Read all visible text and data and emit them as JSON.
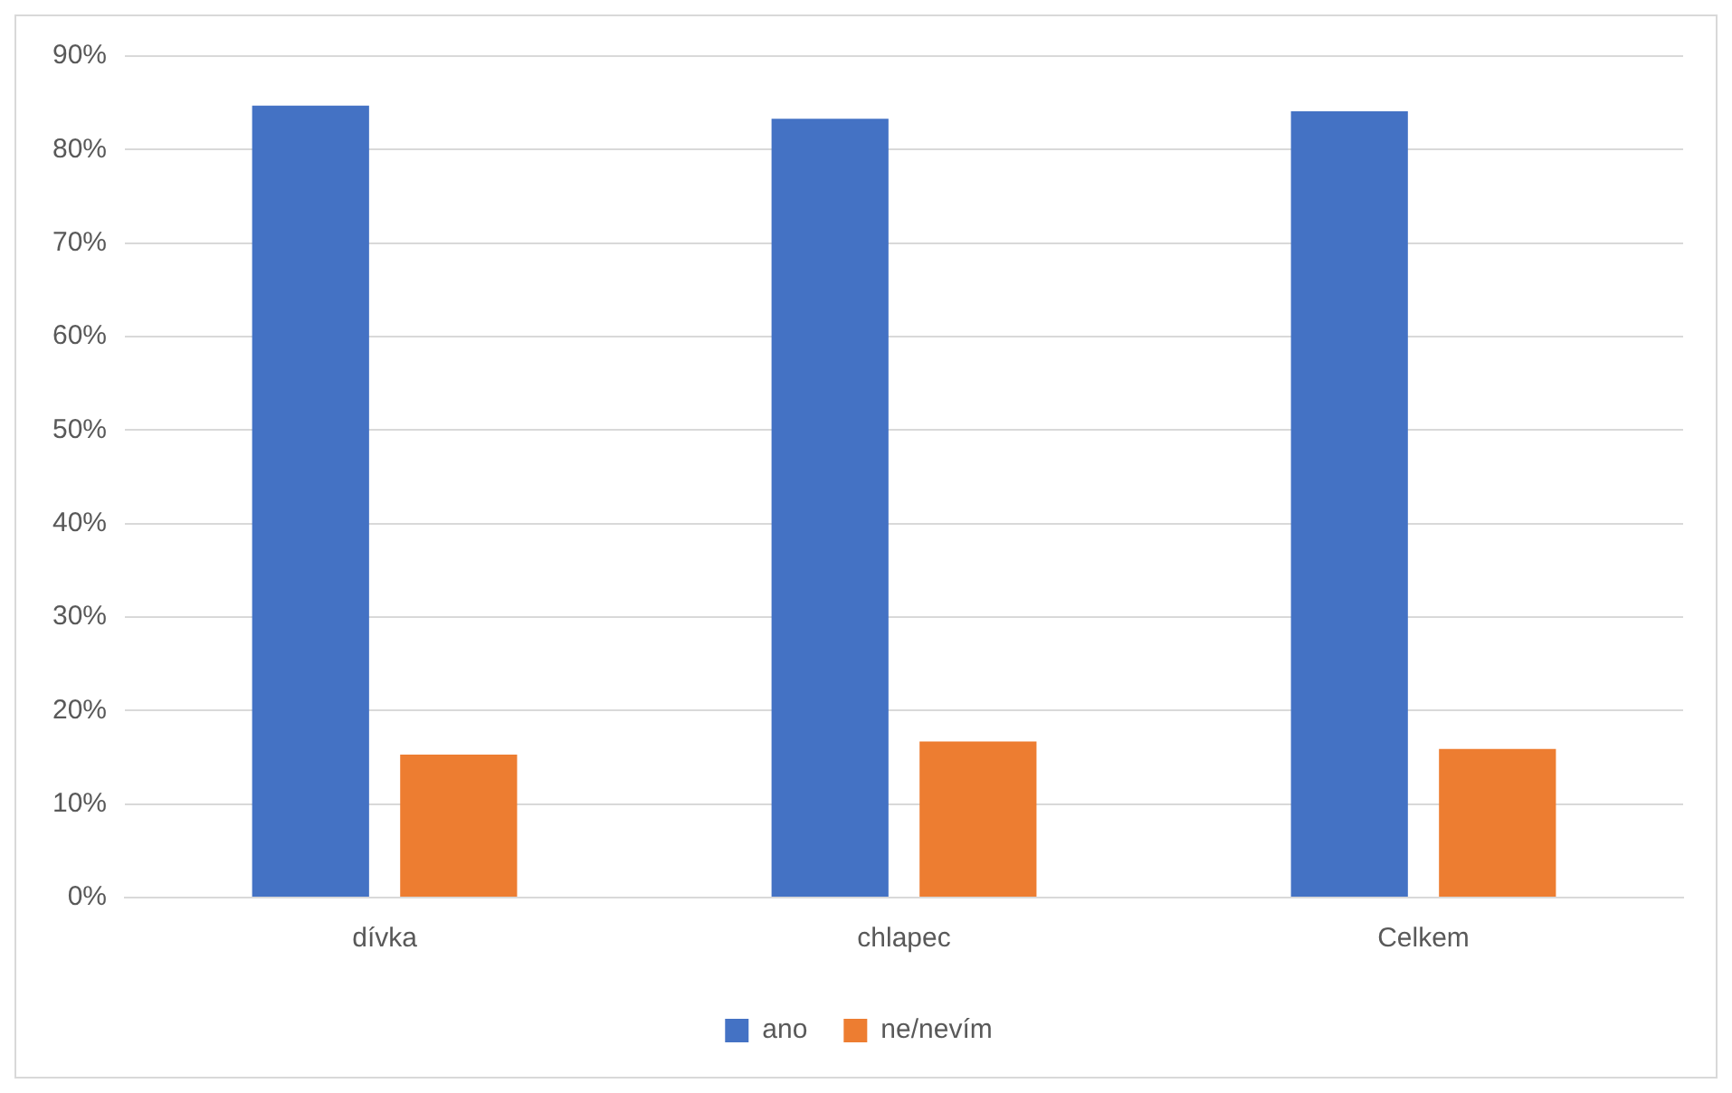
{
  "chart_data": {
    "type": "bar",
    "categories": [
      "dívka",
      "chlapec",
      "Celkem"
    ],
    "series": [
      {
        "name": "ano",
        "color": "#4472c4",
        "values": [
          84.7,
          83.3,
          84.1
        ]
      },
      {
        "name": "ne/nevím",
        "color": "#ed7d31",
        "values": [
          15.3,
          16.7,
          15.9
        ]
      }
    ],
    "ylim": [
      0,
      90
    ],
    "yticks": [
      {
        "value": 0,
        "label": "0%"
      },
      {
        "value": 10,
        "label": "10%"
      },
      {
        "value": 20,
        "label": "20%"
      },
      {
        "value": 30,
        "label": "30%"
      },
      {
        "value": 40,
        "label": "40%"
      },
      {
        "value": 50,
        "label": "50%"
      },
      {
        "value": 60,
        "label": "60%"
      },
      {
        "value": 70,
        "label": "70%"
      },
      {
        "value": 80,
        "label": "80%"
      },
      {
        "value": 90,
        "label": "90%"
      }
    ],
    "grid": "y",
    "legend": "bottom"
  }
}
